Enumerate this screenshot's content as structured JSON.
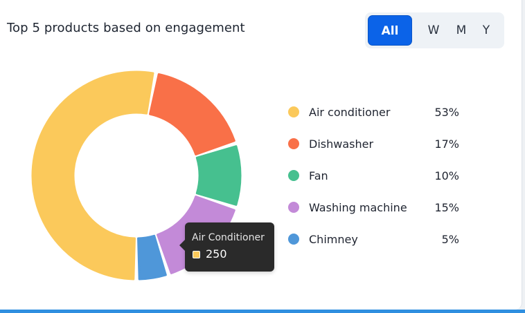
{
  "header": {
    "title": "Top 5 products based on engagement"
  },
  "filters": {
    "options": [
      "All",
      "W",
      "M",
      "Y"
    ],
    "selected": "All"
  },
  "tooltip": {
    "title": "Air Conditioner",
    "value": "250",
    "color": "#fbc95b"
  },
  "chart_data": {
    "type": "pie",
    "title": "Top 5 products based on engagement",
    "donut": true,
    "legend_position": "right",
    "categories": [
      "Air conditioner",
      "Dishwasher",
      "Fan",
      "Washing machine",
      "Chimney"
    ],
    "values": [
      53,
      17,
      10,
      15,
      5
    ],
    "value_labels": [
      "53%",
      "17%",
      "10%",
      "15%",
      "5%"
    ],
    "colors": [
      "#fbc95b",
      "#f97048",
      "#46c08f",
      "#c38ad8",
      "#4f97d9"
    ]
  }
}
